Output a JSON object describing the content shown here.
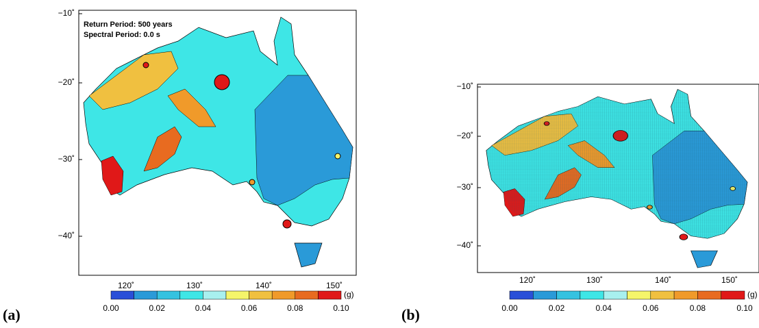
{
  "panels": [
    {
      "label": "(a)",
      "annotations": [
        "Return Period: 500 years",
        "Spectral Period: 0.0 s"
      ],
      "lat_ticks": [
        "−10˚",
        "−20˚",
        "−30˚",
        "−40˚"
      ],
      "lon_ticks": [
        "120˚",
        "130˚",
        "140˚",
        "150˚"
      ],
      "colorbar_ticks": [
        "0.00",
        "0.02",
        "0.04",
        "0.06",
        "0.08",
        "0.10"
      ],
      "unit": "(g)"
    },
    {
      "label": "(b)",
      "lat_ticks": [
        "−10˚",
        "−20˚",
        "−30˚",
        "−40˚"
      ],
      "lon_ticks": [
        "120˚",
        "130˚",
        "140˚",
        "150˚"
      ],
      "colorbar_ticks": [
        "0.00",
        "0.02",
        "0.04",
        "0.06",
        "0.08",
        "0.10"
      ],
      "unit": "(g)"
    }
  ],
  "colorbar_colors": [
    "#2a4fd8",
    "#2a9ad8",
    "#35c2e0",
    "#3ee6e6",
    "#a8f0ef",
    "#f5f56a",
    "#f0c040",
    "#f09a2a",
    "#e86b20",
    "#e01818"
  ]
}
